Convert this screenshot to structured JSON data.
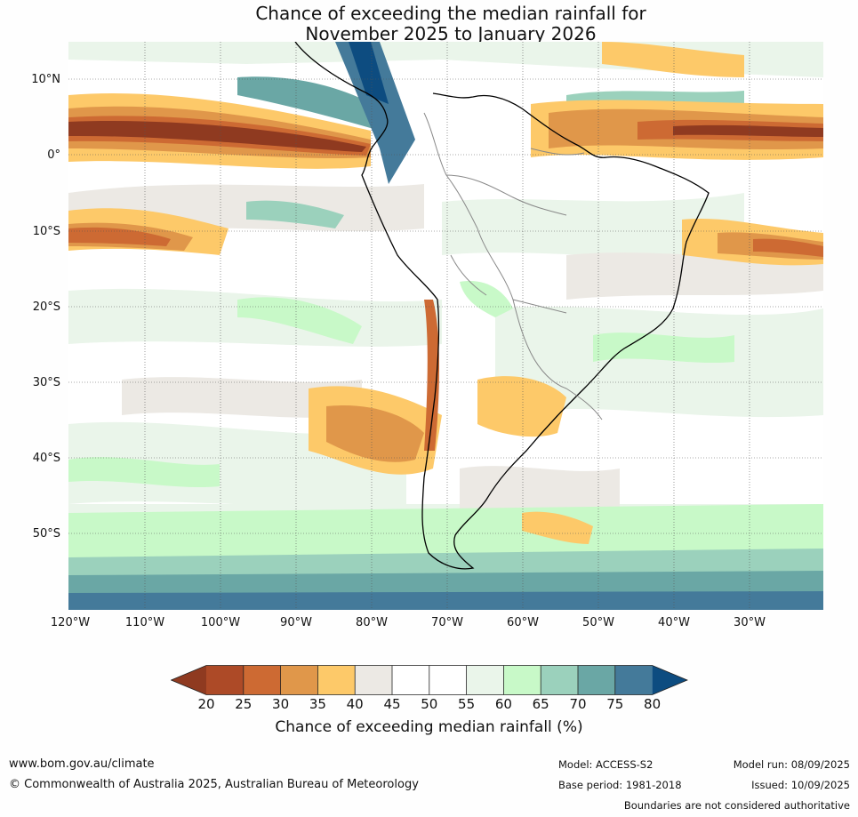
{
  "title": {
    "line1": "Chance of exceeding the median rainfall for",
    "line2": "November 2025 to January 2026"
  },
  "map": {
    "lat_labels": [
      "10°N",
      "0°",
      "10°S",
      "20°S",
      "30°S",
      "40°S",
      "50°S"
    ],
    "lon_labels": [
      "120°W",
      "110°W",
      "100°W",
      "90°W",
      "80°W",
      "70°W",
      "60°W",
      "50°W",
      "40°W",
      "30°W"
    ]
  },
  "colorbar": {
    "ticks": [
      "20",
      "25",
      "30",
      "35",
      "40",
      "45",
      "50",
      "55",
      "60",
      "65",
      "70",
      "75",
      "80"
    ],
    "label": "Chance of exceeding median rainfall (%)",
    "colors": [
      "#8f3a20",
      "#ad4a27",
      "#cd6a33",
      "#e0974a",
      "#fdc969",
      "#ece9e4",
      "#ffffff",
      "#ffffff",
      "#eaf5ea",
      "#c8f9c8",
      "#9bd1bc",
      "#6aa7a5",
      "#447a9a",
      "#0d4c80"
    ]
  },
  "footer": {
    "website": "www.bom.gov.au/climate",
    "copyright": "© Commonwealth of Australia 2025, Australian Bureau of Meteorology",
    "model": "Model: ACCESS-S2",
    "base_period": "Base period: 1981-2018",
    "model_run": "Model run: 08/09/2025",
    "issued": "Issued: 10/09/2025",
    "disclaimer": "Boundaries are not considered authoritative"
  }
}
